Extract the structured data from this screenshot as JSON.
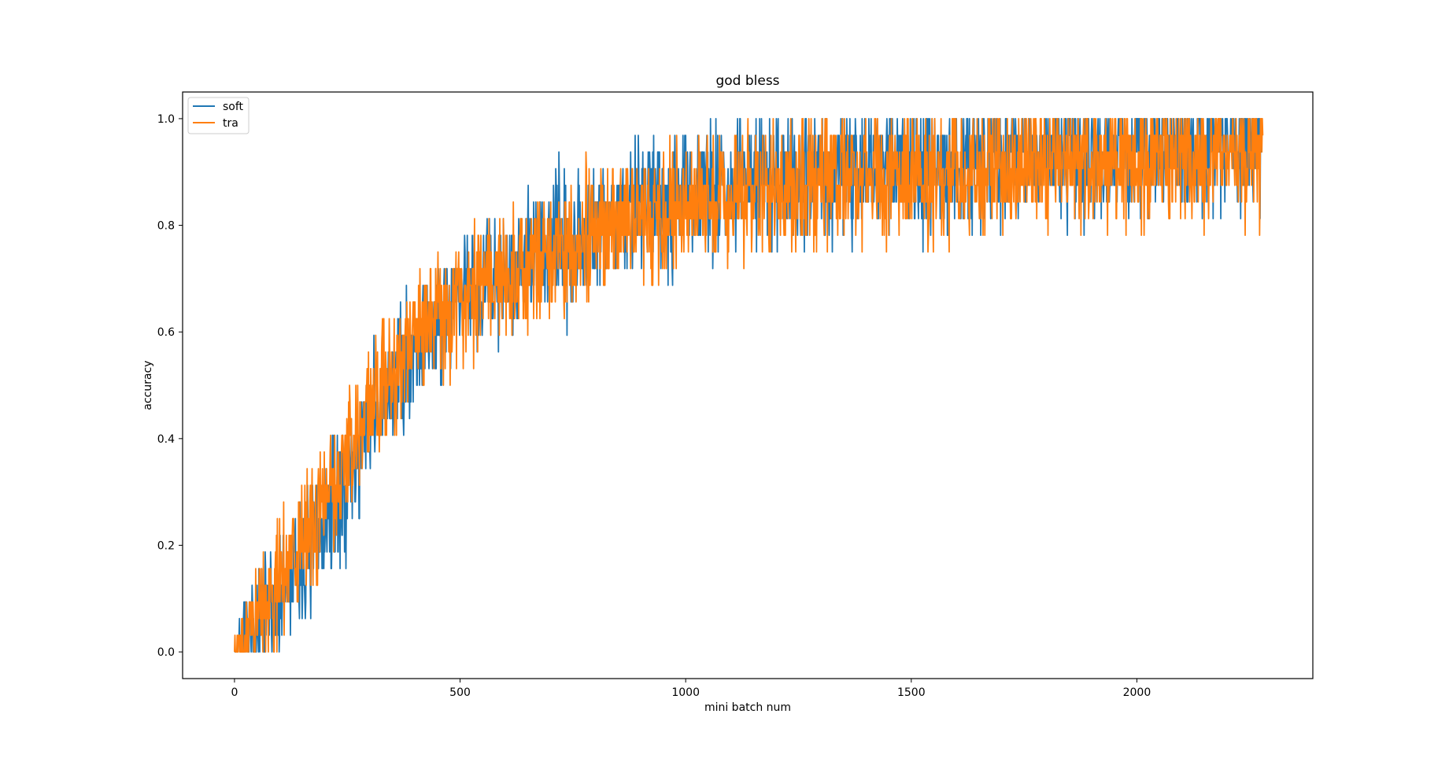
{
  "chart_data": {
    "type": "line",
    "title": "god bless",
    "xlabel": "mini batch num",
    "ylabel": "accuracy",
    "xlim": [
      -115,
      2390
    ],
    "ylim": [
      -0.05,
      1.05
    ],
    "xticks": [
      0,
      500,
      1000,
      1500,
      2000
    ],
    "xtick_labels": [
      "0",
      "500",
      "1000",
      "1500",
      "2000"
    ],
    "yticks": [
      0.0,
      0.2,
      0.4,
      0.6,
      0.8,
      1.0
    ],
    "ytick_labels": [
      "0.0",
      "0.2",
      "0.4",
      "0.6",
      "0.8",
      "1.0"
    ],
    "legend_position": "top-left",
    "n_points": 2280,
    "noise_seeds": [
      7,
      19
    ],
    "series": [
      {
        "name": "soft",
        "color": "#1f77b4",
        "trend": {
          "x": [
            0,
            50,
            100,
            150,
            200,
            250,
            300,
            350,
            400,
            450,
            500,
            550,
            600,
            650,
            700,
            750,
            800,
            900,
            1000,
            1100,
            1200,
            1300,
            1400,
            1500,
            1600,
            1700,
            1800,
            1900,
            2000,
            2100,
            2200,
            2280
          ],
          "y": [
            0.0,
            0.04,
            0.1,
            0.16,
            0.23,
            0.32,
            0.42,
            0.51,
            0.58,
            0.63,
            0.67,
            0.7,
            0.72,
            0.74,
            0.76,
            0.78,
            0.81,
            0.84,
            0.86,
            0.88,
            0.89,
            0.9,
            0.91,
            0.915,
            0.92,
            0.925,
            0.93,
            0.935,
            0.94,
            0.945,
            0.95,
            0.955
          ]
        },
        "noise_amplitude": 0.09
      },
      {
        "name": "tra",
        "color": "#ff7f0e",
        "trend": {
          "x": [
            0,
            50,
            100,
            150,
            200,
            250,
            300,
            350,
            400,
            450,
            500,
            550,
            600,
            650,
            700,
            750,
            800,
            900,
            1000,
            1100,
            1200,
            1300,
            1400,
            1500,
            1600,
            1700,
            1800,
            1900,
            2000,
            2100,
            2200,
            2280
          ],
          "y": [
            0.0,
            0.06,
            0.13,
            0.2,
            0.28,
            0.37,
            0.45,
            0.53,
            0.6,
            0.64,
            0.67,
            0.69,
            0.7,
            0.72,
            0.74,
            0.76,
            0.79,
            0.81,
            0.83,
            0.85,
            0.87,
            0.88,
            0.89,
            0.9,
            0.905,
            0.91,
            0.915,
            0.92,
            0.925,
            0.93,
            0.935,
            0.94
          ]
        },
        "noise_amplitude": 0.09
      }
    ]
  }
}
